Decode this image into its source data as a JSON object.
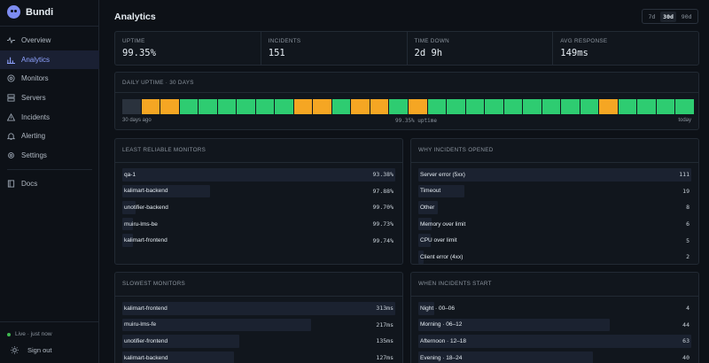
{
  "brand": {
    "name": "Bundi"
  },
  "nav": [
    {
      "key": "overview",
      "label": "Overview",
      "icon": "pulse-icon"
    },
    {
      "key": "analytics",
      "label": "Analytics",
      "icon": "bar-chart-icon",
      "active": true
    },
    {
      "key": "monitors",
      "label": "Monitors",
      "icon": "target-icon"
    },
    {
      "key": "servers",
      "label": "Servers",
      "icon": "server-icon"
    },
    {
      "key": "incidents",
      "label": "Incidents",
      "icon": "warning-icon"
    },
    {
      "key": "alerting",
      "label": "Alerting",
      "icon": "bell-icon"
    },
    {
      "key": "settings",
      "label": "Settings",
      "icon": "gear-icon"
    }
  ],
  "docs": {
    "label": "Docs",
    "icon": "book-icon"
  },
  "footer": {
    "live": "Live · just now",
    "signout": "Sign out"
  },
  "header": {
    "title": "Analytics",
    "ranges": [
      "7d",
      "30d",
      "90d"
    ],
    "selected_range": "30d"
  },
  "stats": [
    {
      "label": "UPTIME",
      "value": "99.35%"
    },
    {
      "label": "INCIDENTS",
      "value": "151"
    },
    {
      "label": "TIME DOWN",
      "value": "2d 9h"
    },
    {
      "label": "AVG RESPONSE",
      "value": "149ms"
    }
  ],
  "daily_uptime": {
    "title": "DAILY UPTIME · 30 DAYS",
    "start_label": "30 days ago",
    "mid_label": "99.35% uptime",
    "end_label": "today",
    "days": [
      "none",
      "warn",
      "warn",
      "ok",
      "ok",
      "ok",
      "ok",
      "ok",
      "ok",
      "warn",
      "warn",
      "ok",
      "warn",
      "warn",
      "ok",
      "warn",
      "ok",
      "ok",
      "ok",
      "ok",
      "ok",
      "ok",
      "ok",
      "ok",
      "ok",
      "warn",
      "ok",
      "ok",
      "ok",
      "ok"
    ]
  },
  "colors": {
    "ok": "#2ecc71",
    "warn": "#f5a623",
    "none": "#2a323d",
    "accent": "#8ea2ff"
  },
  "least_reliable": {
    "title": "LEAST RELIABLE MONITORS",
    "rows": [
      {
        "name": "qa-1",
        "value": "93.38%",
        "fill": 1.0
      },
      {
        "name": "kalimart-backend",
        "value": "97.88%",
        "fill": 0.32
      },
      {
        "name": "unotifier-backend",
        "value": "99.70%",
        "fill": 0.05
      },
      {
        "name": "muiru-lms-be",
        "value": "99.73%",
        "fill": 0.04
      },
      {
        "name": "kalimart-frontend",
        "value": "99.74%",
        "fill": 0.04
      }
    ]
  },
  "why_incidents": {
    "title": "WHY INCIDENTS OPENED",
    "rows": [
      {
        "name": "Server error (5xx)",
        "value": "111",
        "fill": 1.0
      },
      {
        "name": "Timeout",
        "value": "19",
        "fill": 0.17
      },
      {
        "name": "Other",
        "value": "8",
        "fill": 0.07
      },
      {
        "name": "Memory over limit",
        "value": "6",
        "fill": 0.05
      },
      {
        "name": "CPU over limit",
        "value": "5",
        "fill": 0.045
      },
      {
        "name": "Client error (4xx)",
        "value": "2",
        "fill": 0.02
      }
    ]
  },
  "slowest": {
    "title": "SLOWEST MONITORS",
    "rows": [
      {
        "name": "kalimart-frontend",
        "value": "313ms",
        "fill": 1.0
      },
      {
        "name": "muiru-lms-fe",
        "value": "217ms",
        "fill": 0.69
      },
      {
        "name": "unotifier-frontend",
        "value": "135ms",
        "fill": 0.43
      },
      {
        "name": "kalimart-backend",
        "value": "127ms",
        "fill": 0.41
      }
    ]
  },
  "incident_start": {
    "title": "WHEN INCIDENTS START",
    "rows": [
      {
        "name": "Night · 00–06",
        "value": "4",
        "fill": 0.06
      },
      {
        "name": "Morning · 06–12",
        "value": "44",
        "fill": 0.7
      },
      {
        "name": "Afternoon · 12–18",
        "value": "63",
        "fill": 1.0
      },
      {
        "name": "Evening · 18–24",
        "value": "40",
        "fill": 0.64
      }
    ]
  }
}
